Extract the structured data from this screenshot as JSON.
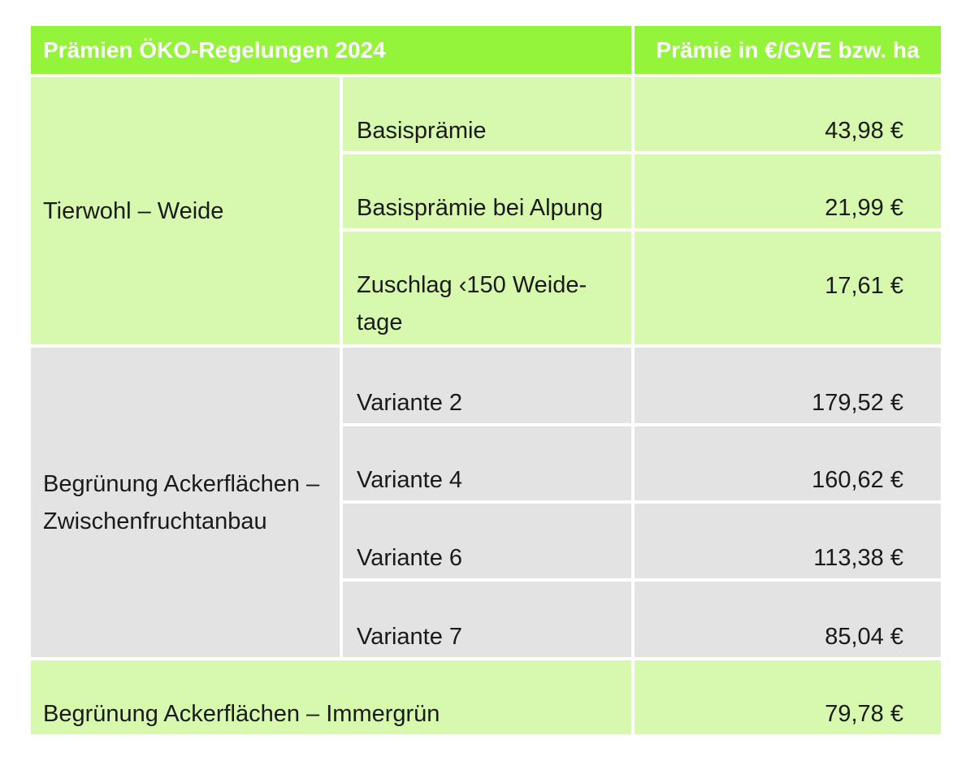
{
  "table": {
    "header": {
      "title": "Prämien ÖKO-Regelungen 2024",
      "amount": "Prämie in €/GVE bzw. ha"
    },
    "groups": [
      {
        "label": "Tierwohl – Weide",
        "rows": [
          {
            "name": "Basisprämie",
            "value": "43,98 €"
          },
          {
            "name": "Basisprämie bei Alpung",
            "value": "21,99 €"
          },
          {
            "name": "Zuschlag ‹150 Weide-tage",
            "name_line1": "Zuschlag ‹150 Weide-",
            "name_line2": "tage",
            "value": "17,61 €"
          }
        ]
      },
      {
        "label": "Begrünung Ackerflächen – Zwischenfruchtanbau",
        "label_line1": "Begrünung Ackerflächen –",
        "label_line2": "Zwischenfruchtanbau",
        "rows": [
          {
            "name": "Variante 2",
            "value": "179,52 €"
          },
          {
            "name": "Variante 4",
            "value": "160,62 €"
          },
          {
            "name": "Variante 6",
            "value": "113,38 €"
          },
          {
            "name": "Variante 7",
            "value": "85,04 €"
          }
        ]
      },
      {
        "label": "Begrünung Ackerflächen – Immergrün",
        "value": "79,78 €"
      }
    ]
  }
}
